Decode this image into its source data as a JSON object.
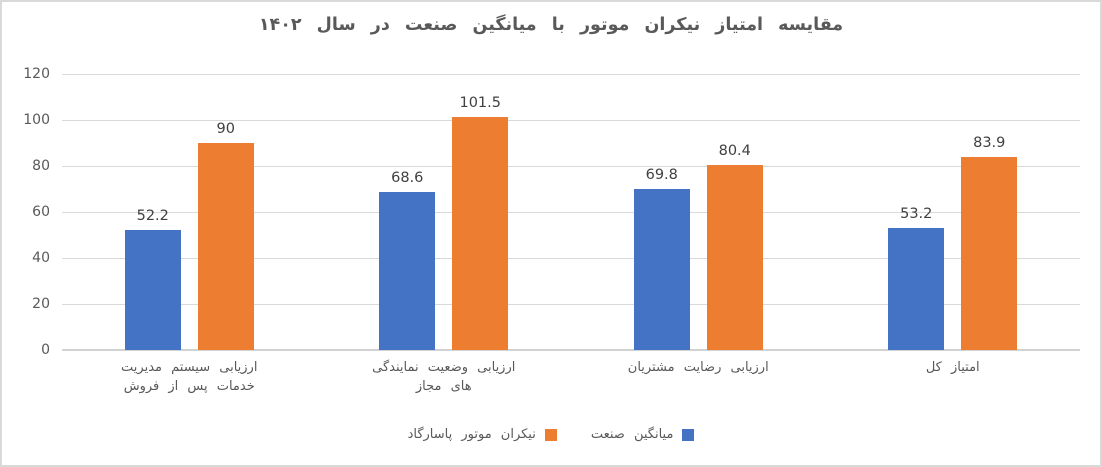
{
  "chart_data": {
    "type": "bar",
    "title": "مقایسه امتیاز نیکران موتور با میانگین صنعت در سال ۱۴۰۲",
    "categories": [
      [
        "ارزیابی سیستم مدیریت",
        "خدمات پس از فروش"
      ],
      [
        "ارزیابی وضعیت نمایندگی",
        "های مجاز"
      ],
      [
        "ارزیابی رضایت مشتریان"
      ],
      [
        "امتیاز کل"
      ]
    ],
    "series": [
      {
        "name": "میانگین صنعت",
        "color": "#4472C4",
        "values": [
          52.2,
          68.6,
          69.8,
          53.2
        ],
        "value_labels": [
          "52.2",
          "68.6",
          "69.8",
          "53.2"
        ]
      },
      {
        "name": "نیکران موتور پاسارگاد",
        "color": "#ED7D31",
        "values": [
          90,
          101.5,
          80.4,
          83.9
        ],
        "value_labels": [
          "90",
          "101.5",
          "80.4",
          "83.9"
        ]
      }
    ],
    "y_ticks": [
      0,
      20,
      40,
      60,
      80,
      100,
      120
    ],
    "y_tick_labels": [
      "0",
      "20",
      "40",
      "60",
      "80",
      "100",
      "120"
    ],
    "ylim": [
      0,
      120
    ],
    "grid": true,
    "legend_position": "bottom",
    "direction": "rtl",
    "colors": {
      "gridline": "#D9D9D9",
      "axis_line": "#D2D2D2",
      "title_text": "#595959",
      "axis_text": "#595959",
      "value_label_text": "#404040",
      "frame_border": "#D9D9D9",
      "background": "#FFFFFF"
    }
  }
}
